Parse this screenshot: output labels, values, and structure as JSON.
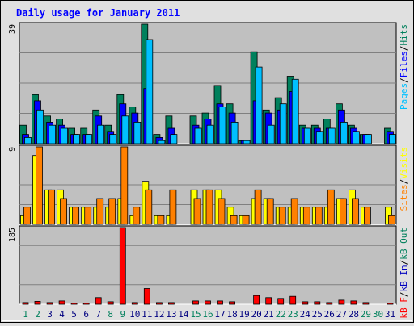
{
  "chart_data": [
    {
      "type": "bar",
      "title": "Daily usage for January 2011",
      "ymax_label": "39",
      "ylim": [
        0,
        39
      ],
      "categories": [
        "1",
        "2",
        "3",
        "4",
        "5",
        "6",
        "7",
        "8",
        "9",
        "10",
        "11",
        "12",
        "13",
        "14",
        "15",
        "16",
        "17",
        "18",
        "19",
        "20",
        "21",
        "22",
        "23",
        "24",
        "25",
        "26",
        "27",
        "28",
        "29",
        "30",
        "31"
      ],
      "weekend_days": [
        "1",
        "2",
        "8",
        "9",
        "15",
        "16",
        "22",
        "23",
        "29",
        "30"
      ],
      "series": [
        {
          "name": "Hits",
          "color": "#00805c",
          "values": [
            6,
            16,
            9,
            8,
            5,
            5,
            11,
            6,
            16,
            12,
            39,
            3,
            9,
            0,
            9,
            10,
            19,
            13,
            1,
            30,
            11,
            15,
            22,
            6,
            6,
            8,
            13,
            6,
            3,
            0,
            5
          ]
        },
        {
          "name": "Files",
          "color": "#0000ff",
          "values": [
            3,
            14,
            7,
            6,
            3,
            3,
            9,
            4,
            13,
            10,
            18,
            2,
            5,
            0,
            6,
            8,
            13,
            10,
            1,
            14,
            10,
            11,
            17,
            5,
            5,
            5,
            11,
            5,
            3,
            0,
            4
          ]
        },
        {
          "name": "Pages",
          "color": "#00c0ff",
          "values": [
            2,
            11,
            6,
            5,
            3,
            3,
            6,
            3,
            9,
            7,
            34,
            1,
            3,
            0,
            5,
            6,
            12,
            7,
            1,
            25,
            6,
            13,
            21,
            5,
            4,
            5,
            7,
            4,
            3,
            0,
            3
          ]
        }
      ],
      "legend": [
        "Pages",
        "/",
        "Files",
        "/",
        "Hits"
      ]
    },
    {
      "type": "bar",
      "ymax_label": "9",
      "ylim": [
        0,
        9
      ],
      "categories": [
        "1",
        "2",
        "3",
        "4",
        "5",
        "6",
        "7",
        "8",
        "9",
        "10",
        "11",
        "12",
        "13",
        "14",
        "15",
        "16",
        "17",
        "18",
        "19",
        "20",
        "21",
        "22",
        "23",
        "24",
        "25",
        "26",
        "27",
        "28",
        "29",
        "30",
        "31"
      ],
      "series": [
        {
          "name": "Visits",
          "color": "#ffff00",
          "values": [
            1,
            8,
            4,
            4,
            2,
            2,
            2,
            2,
            3,
            1,
            5,
            1,
            1,
            0,
            4,
            4,
            4,
            2,
            1,
            3,
            3,
            2,
            2,
            2,
            2,
            2,
            3,
            4,
            2,
            0,
            2
          ]
        },
        {
          "name": "Sites",
          "color": "#ff8000",
          "values": [
            2,
            9,
            4,
            3,
            2,
            2,
            3,
            3,
            9,
            2,
            4,
            1,
            4,
            0,
            3,
            4,
            3,
            1,
            1,
            4,
            3,
            2,
            3,
            2,
            2,
            4,
            3,
            3,
            2,
            0,
            1
          ]
        }
      ],
      "legend": [
        "Sites",
        "/",
        "Visits"
      ]
    },
    {
      "type": "bar",
      "ymax_label": "185",
      "ylim": [
        0,
        185
      ],
      "categories": [
        "1",
        "2",
        "3",
        "4",
        "5",
        "6",
        "7",
        "8",
        "9",
        "10",
        "11",
        "12",
        "13",
        "14",
        "15",
        "16",
        "17",
        "18",
        "19",
        "20",
        "21",
        "22",
        "23",
        "24",
        "25",
        "26",
        "27",
        "28",
        "29",
        "30",
        "31"
      ],
      "series": [
        {
          "name": "kB F",
          "color": "#ff0000",
          "values": [
            4,
            7,
            4,
            8,
            3,
            3,
            16,
            6,
            185,
            4,
            38,
            4,
            4,
            0,
            8,
            8,
            8,
            6,
            0,
            21,
            16,
            14,
            19,
            6,
            6,
            4,
            10,
            8,
            4,
            0,
            3
          ]
        }
      ],
      "legend": [
        "kB F",
        "/",
        "kB In",
        "/",
        "kB Out"
      ],
      "legend_colors": [
        "#ff0000",
        "#000000",
        "#0000c0",
        "#000000",
        "#00805c"
      ]
    }
  ],
  "colors": {
    "title": "#0000ff",
    "weekday_label": "#000080",
    "weekend_label": "#00805c",
    "plot_bg": "#c0c0c0",
    "page_bg": "#e0e0e0",
    "grid": "#808080"
  }
}
